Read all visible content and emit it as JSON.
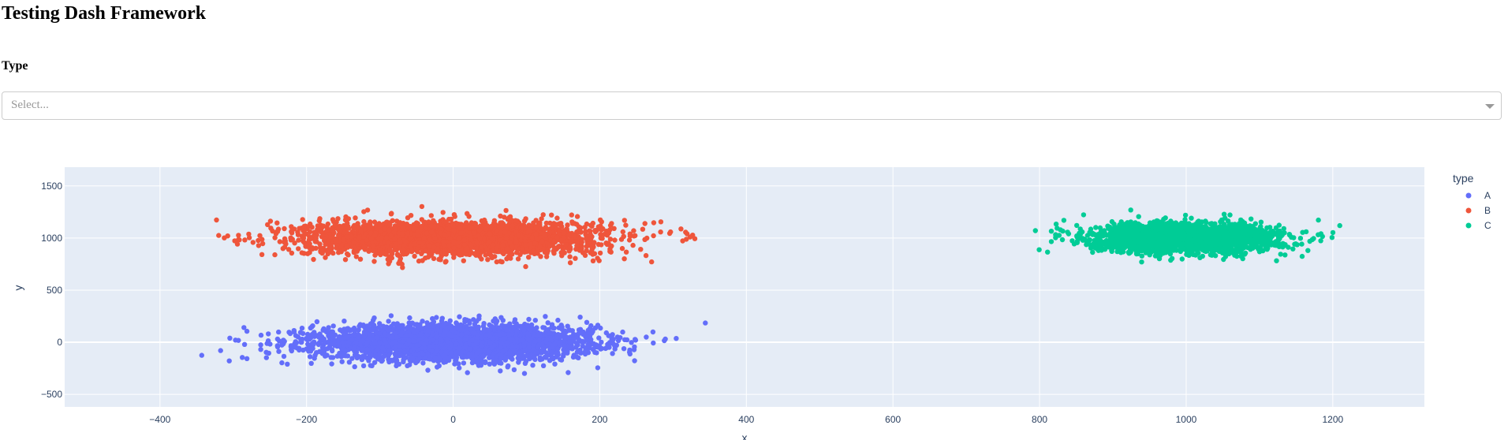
{
  "page": {
    "title": "Testing Dash Framework",
    "type_label": "Type",
    "dropdown": {
      "placeholder": "Select...",
      "value": ""
    }
  },
  "chart_data": {
    "type": "scatter",
    "xlabel": "x",
    "ylabel": "y",
    "xlim": [
      -530,
      1325
    ],
    "ylim": [
      -620,
      1680
    ],
    "xticks": [
      -400,
      -200,
      0,
      200,
      400,
      600,
      800,
      1000,
      1200
    ],
    "yticks": [
      -500,
      0,
      500,
      1000,
      1500
    ],
    "grid": true,
    "legend": {
      "title": "type",
      "placement": "right"
    },
    "colors": {
      "plot_bg": "#e5ecf6",
      "grid": "#ffffff",
      "axis_text": "#2a3f5f"
    },
    "series": [
      {
        "name": "A",
        "color": "#636efa",
        "center": [
          0,
          0
        ],
        "x_std": 95,
        "y_std": 85,
        "approx_range": {
          "x": [
            -430,
            440
          ],
          "y": [
            -460,
            420
          ]
        }
      },
      {
        "name": "B",
        "color": "#ef553b",
        "center": [
          0,
          1000
        ],
        "x_std": 100,
        "y_std": 80,
        "approx_range": {
          "x": [
            -410,
            445
          ],
          "y": [
            580,
            1430
          ]
        },
        "secondary_center": [
          1000,
          1000
        ]
      },
      {
        "name": "C",
        "color": "#00cc96",
        "center": [
          1000,
          1000
        ],
        "x_std": 65,
        "y_std": 70,
        "approx_range": {
          "x": [
            790,
            1225
          ],
          "y": [
            600,
            1530
          ]
        }
      }
    ]
  }
}
